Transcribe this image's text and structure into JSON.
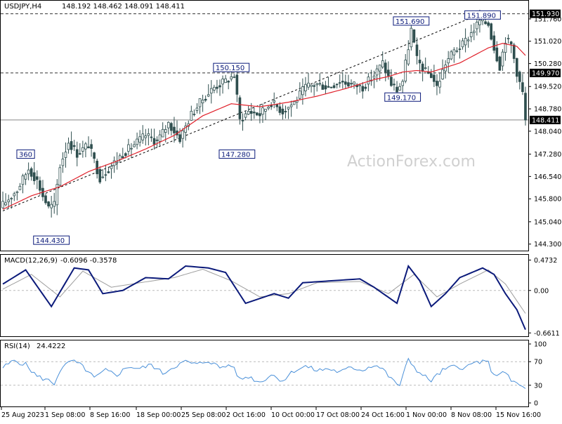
{
  "header": {
    "symbol": "USDJPY,H4",
    "ohlc": "148.192 148.462 148.091 148.411"
  },
  "watermark": "ActionForex.com",
  "colors": {
    "candle": "#2f4f4f",
    "ma": "#e0202a",
    "trend": "#000000",
    "macd": "#0b1a7a",
    "signal": "#9e9e9e",
    "rsi": "#4a90d9",
    "level_line": "#555555",
    "box_text": "#0b1a7a",
    "price_box": "#000000"
  },
  "chart_data": [
    {
      "type": "candlestick",
      "name": "price",
      "ylim": [
        144.2,
        152.2
      ],
      "yticks": [
        "151.760",
        "151.020",
        "150.280",
        "149.520",
        "148.780",
        "148.040",
        "147.280",
        "146.540",
        "145.800",
        "145.040",
        "144.300"
      ],
      "xticks": [
        "25 Aug 2023",
        "1 Sep 08:00",
        "8 Sep 16:00",
        "18 Sep 00:00",
        "25 Sep 08:00",
        "2 Oct 16:00",
        "10 Oct 00:00",
        "17 Oct 08:00",
        "24 Oct 16:00",
        "1 Nov 00:00",
        "8 Nov 08:00",
        "15 Nov 16:00"
      ],
      "anchors": [
        {
          "i": 0,
          "v": 145.6
        },
        {
          "i": 5,
          "v": 146.1
        },
        {
          "i": 9,
          "v": 146.8
        },
        {
          "i": 12,
          "v": 146.4
        },
        {
          "i": 14,
          "v": 145.9
        },
        {
          "i": 16,
          "v": 145.5
        },
        {
          "i": 18,
          "v": 145.6
        },
        {
          "i": 20,
          "v": 146.9
        },
        {
          "i": 23,
          "v": 147.7
        },
        {
          "i": 26,
          "v": 147.3
        },
        {
          "i": 30,
          "v": 147.6
        },
        {
          "i": 34,
          "v": 146.5
        },
        {
          "i": 38,
          "v": 146.9
        },
        {
          "i": 42,
          "v": 147.3
        },
        {
          "i": 46,
          "v": 147.6
        },
        {
          "i": 50,
          "v": 147.9
        },
        {
          "i": 54,
          "v": 147.7
        },
        {
          "i": 58,
          "v": 148.3
        },
        {
          "i": 62,
          "v": 147.8
        },
        {
          "i": 66,
          "v": 148.6
        },
        {
          "i": 70,
          "v": 149.1
        },
        {
          "i": 74,
          "v": 149.5
        },
        {
          "i": 78,
          "v": 149.7
        },
        {
          "i": 81,
          "v": 149.9
        },
        {
          "i": 83,
          "v": 148.4
        },
        {
          "i": 86,
          "v": 148.7
        },
        {
          "i": 90,
          "v": 148.6
        },
        {
          "i": 94,
          "v": 149.0
        },
        {
          "i": 98,
          "v": 148.7
        },
        {
          "i": 102,
          "v": 149.0
        },
        {
          "i": 106,
          "v": 149.5
        },
        {
          "i": 110,
          "v": 149.6
        },
        {
          "i": 114,
          "v": 149.5
        },
        {
          "i": 118,
          "v": 149.7
        },
        {
          "i": 122,
          "v": 149.6
        },
        {
          "i": 126,
          "v": 149.5
        },
        {
          "i": 130,
          "v": 149.9
        },
        {
          "i": 133,
          "v": 150.3
        },
        {
          "i": 136,
          "v": 149.6
        },
        {
          "i": 138,
          "v": 149.4
        },
        {
          "i": 140,
          "v": 149.7
        },
        {
          "i": 143,
          "v": 151.4
        },
        {
          "i": 145,
          "v": 150.4
        },
        {
          "i": 148,
          "v": 150.0
        },
        {
          "i": 150,
          "v": 149.9
        },
        {
          "i": 152,
          "v": 149.5
        },
        {
          "i": 155,
          "v": 150.3
        },
        {
          "i": 158,
          "v": 150.7
        },
        {
          "i": 161,
          "v": 150.9
        },
        {
          "i": 164,
          "v": 151.3
        },
        {
          "i": 167,
          "v": 151.7
        },
        {
          "i": 170,
          "v": 151.6
        },
        {
          "i": 172,
          "v": 150.8
        },
        {
          "i": 174,
          "v": 150.2
        },
        {
          "i": 176,
          "v": 151.1
        },
        {
          "i": 178,
          "v": 150.9
        },
        {
          "i": 180,
          "v": 150.0
        },
        {
          "i": 182,
          "v": 149.3
        },
        {
          "i": 183,
          "v": 148.411
        }
      ],
      "moving_average_anchors": [
        {
          "i": 0,
          "v": 145.45
        },
        {
          "i": 10,
          "v": 145.9
        },
        {
          "i": 20,
          "v": 146.2
        },
        {
          "i": 30,
          "v": 146.7
        },
        {
          "i": 40,
          "v": 147.05
        },
        {
          "i": 50,
          "v": 147.45
        },
        {
          "i": 60,
          "v": 147.9
        },
        {
          "i": 70,
          "v": 148.55
        },
        {
          "i": 80,
          "v": 148.95
        },
        {
          "i": 90,
          "v": 148.85
        },
        {
          "i": 100,
          "v": 149.0
        },
        {
          "i": 110,
          "v": 149.2
        },
        {
          "i": 120,
          "v": 149.45
        },
        {
          "i": 130,
          "v": 149.75
        },
        {
          "i": 135,
          "v": 149.85
        },
        {
          "i": 140,
          "v": 150.0
        },
        {
          "i": 145,
          "v": 150.05
        },
        {
          "i": 150,
          "v": 150.0
        },
        {
          "i": 160,
          "v": 150.3
        },
        {
          "i": 170,
          "v": 150.8
        },
        {
          "i": 175,
          "v": 150.95
        },
        {
          "i": 180,
          "v": 150.85
        },
        {
          "i": 183,
          "v": 150.55
        }
      ],
      "trendline": [
        {
          "i": 0,
          "v": 145.4
        },
        {
          "i": 168,
          "v": 151.95
        }
      ],
      "horizontal_levels": [
        "151.930",
        "149.970",
        "148.411"
      ],
      "annotations": [
        {
          "label": "360",
          "i": 8,
          "v": 147.28
        },
        {
          "label": "144.430",
          "i": 17,
          "v": 144.43
        },
        {
          "label": "150.150",
          "i": 80,
          "v": 150.15
        },
        {
          "label": "147.280",
          "i": 82,
          "v": 147.28
        },
        {
          "label": "151.690",
          "i": 143,
          "v": 151.69
        },
        {
          "label": "149.170",
          "i": 140,
          "v": 149.17
        },
        {
          "label": "151.890",
          "i": 168,
          "v": 151.89
        }
      ]
    },
    {
      "type": "line",
      "name": "MACD(12,26,9)",
      "values_label": "-0.6096 -0.3578",
      "ylim": [
        -0.68,
        0.5
      ],
      "yticks": [
        "0.4732",
        "0.00",
        "-0.6611"
      ],
      "macd_anchors": [
        {
          "i": 0,
          "v": 0.1
        },
        {
          "i": 8,
          "v": 0.32
        },
        {
          "i": 17,
          "v": -0.25
        },
        {
          "i": 25,
          "v": 0.35
        },
        {
          "i": 30,
          "v": 0.32
        },
        {
          "i": 35,
          "v": -0.05
        },
        {
          "i": 42,
          "v": 0.0
        },
        {
          "i": 50,
          "v": 0.2
        },
        {
          "i": 58,
          "v": 0.18
        },
        {
          "i": 64,
          "v": 0.38
        },
        {
          "i": 72,
          "v": 0.35
        },
        {
          "i": 78,
          "v": 0.28
        },
        {
          "i": 85,
          "v": -0.2
        },
        {
          "i": 95,
          "v": -0.05
        },
        {
          "i": 100,
          "v": -0.12
        },
        {
          "i": 105,
          "v": 0.12
        },
        {
          "i": 115,
          "v": 0.15
        },
        {
          "i": 125,
          "v": 0.18
        },
        {
          "i": 130,
          "v": 0.05
        },
        {
          "i": 138,
          "v": -0.2
        },
        {
          "i": 142,
          "v": 0.38
        },
        {
          "i": 146,
          "v": 0.15
        },
        {
          "i": 150,
          "v": -0.25
        },
        {
          "i": 155,
          "v": -0.05
        },
        {
          "i": 160,
          "v": 0.2
        },
        {
          "i": 168,
          "v": 0.35
        },
        {
          "i": 172,
          "v": 0.25
        },
        {
          "i": 176,
          "v": -0.05
        },
        {
          "i": 180,
          "v": -0.3
        },
        {
          "i": 183,
          "v": -0.6096
        }
      ],
      "signal_anchors": [
        {
          "i": 0,
          "v": 0.02
        },
        {
          "i": 10,
          "v": 0.25
        },
        {
          "i": 20,
          "v": -0.1
        },
        {
          "i": 28,
          "v": 0.3
        },
        {
          "i": 38,
          "v": 0.05
        },
        {
          "i": 48,
          "v": 0.12
        },
        {
          "i": 60,
          "v": 0.2
        },
        {
          "i": 70,
          "v": 0.33
        },
        {
          "i": 80,
          "v": 0.15
        },
        {
          "i": 90,
          "v": -0.1
        },
        {
          "i": 100,
          "v": -0.05
        },
        {
          "i": 110,
          "v": 0.12
        },
        {
          "i": 125,
          "v": 0.14
        },
        {
          "i": 135,
          "v": -0.05
        },
        {
          "i": 144,
          "v": 0.25
        },
        {
          "i": 152,
          "v": -0.1
        },
        {
          "i": 160,
          "v": 0.1
        },
        {
          "i": 170,
          "v": 0.32
        },
        {
          "i": 176,
          "v": 0.1
        },
        {
          "i": 183,
          "v": -0.3578
        }
      ]
    },
    {
      "type": "line",
      "name": "RSI(14)",
      "value_label": "24.4222",
      "ylim": [
        0,
        100
      ],
      "yticks": [
        "100",
        "70",
        "30",
        "0"
      ],
      "levels": [
        70,
        30
      ],
      "anchors": [
        {
          "i": 0,
          "v": 60
        },
        {
          "i": 4,
          "v": 72
        },
        {
          "i": 8,
          "v": 65
        },
        {
          "i": 12,
          "v": 45
        },
        {
          "i": 16,
          "v": 38
        },
        {
          "i": 18,
          "v": 33
        },
        {
          "i": 20,
          "v": 55
        },
        {
          "i": 24,
          "v": 72
        },
        {
          "i": 28,
          "v": 62
        },
        {
          "i": 32,
          "v": 42
        },
        {
          "i": 36,
          "v": 55
        },
        {
          "i": 40,
          "v": 48
        },
        {
          "i": 44,
          "v": 62
        },
        {
          "i": 48,
          "v": 58
        },
        {
          "i": 52,
          "v": 65
        },
        {
          "i": 56,
          "v": 50
        },
        {
          "i": 60,
          "v": 62
        },
        {
          "i": 64,
          "v": 70
        },
        {
          "i": 68,
          "v": 65
        },
        {
          "i": 72,
          "v": 72
        },
        {
          "i": 76,
          "v": 60
        },
        {
          "i": 80,
          "v": 65
        },
        {
          "i": 83,
          "v": 40
        },
        {
          "i": 86,
          "v": 45
        },
        {
          "i": 90,
          "v": 35
        },
        {
          "i": 94,
          "v": 48
        },
        {
          "i": 98,
          "v": 38
        },
        {
          "i": 102,
          "v": 55
        },
        {
          "i": 106,
          "v": 62
        },
        {
          "i": 110,
          "v": 55
        },
        {
          "i": 114,
          "v": 58
        },
        {
          "i": 118,
          "v": 52
        },
        {
          "i": 122,
          "v": 60
        },
        {
          "i": 126,
          "v": 56
        },
        {
          "i": 130,
          "v": 65
        },
        {
          "i": 133,
          "v": 58
        },
        {
          "i": 136,
          "v": 40
        },
        {
          "i": 139,
          "v": 30
        },
        {
          "i": 142,
          "v": 74
        },
        {
          "i": 146,
          "v": 50
        },
        {
          "i": 150,
          "v": 38
        },
        {
          "i": 154,
          "v": 55
        },
        {
          "i": 158,
          "v": 62
        },
        {
          "i": 162,
          "v": 60
        },
        {
          "i": 166,
          "v": 70
        },
        {
          "i": 170,
          "v": 68
        },
        {
          "i": 172,
          "v": 45
        },
        {
          "i": 175,
          "v": 55
        },
        {
          "i": 178,
          "v": 38
        },
        {
          "i": 181,
          "v": 30
        },
        {
          "i": 183,
          "v": 24.4
        }
      ]
    }
  ]
}
